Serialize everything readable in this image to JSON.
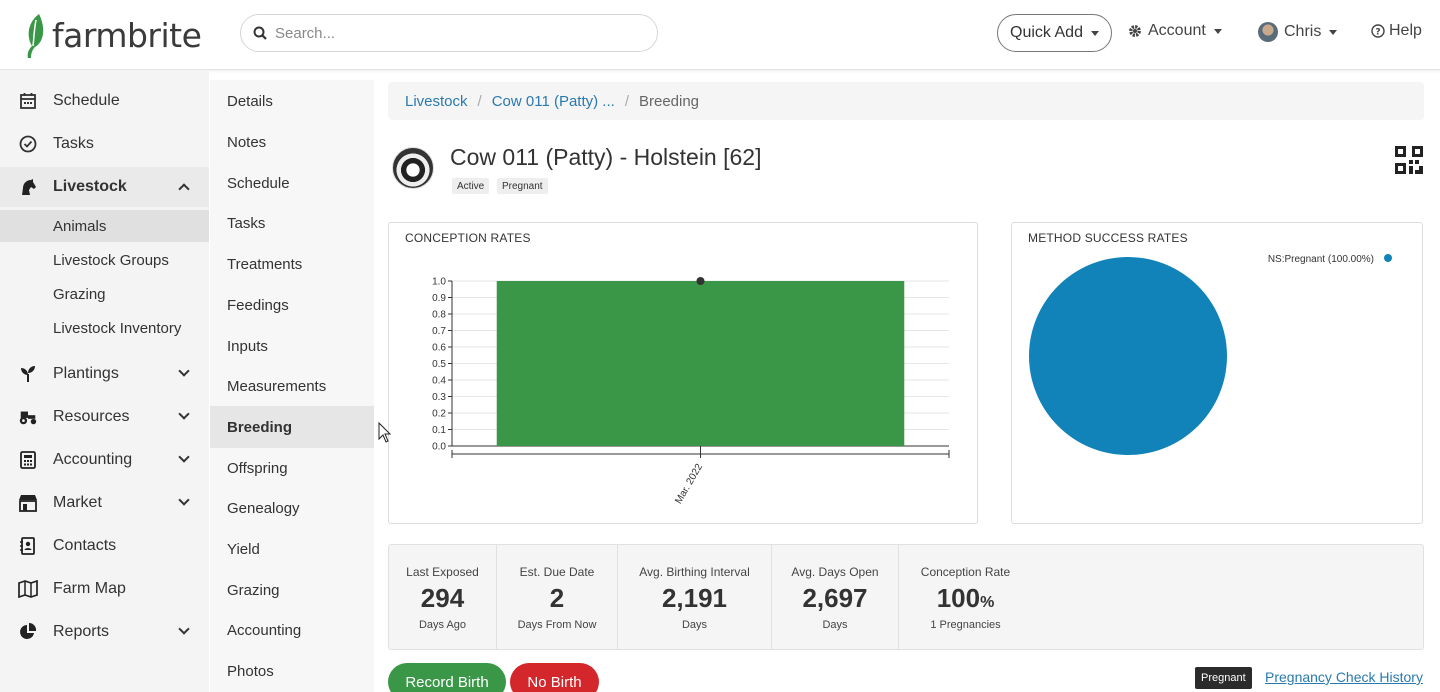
{
  "app": {
    "logo_text": "farmbrite",
    "brand_color": "#3a9748"
  },
  "header": {
    "search_placeholder": "Search...",
    "quick_add": "Quick Add",
    "account": "Account",
    "user": "Chris",
    "help": "Help"
  },
  "sidebar": {
    "items": [
      {
        "label": "Schedule",
        "icon": "calendar-icon"
      },
      {
        "label": "Tasks",
        "icon": "check-circle-icon"
      },
      {
        "label": "Livestock",
        "icon": "horse-icon"
      },
      {
        "label": "Plantings",
        "icon": "seedling-icon"
      },
      {
        "label": "Resources",
        "icon": "tractor-icon"
      },
      {
        "label": "Accounting",
        "icon": "calculator-icon"
      },
      {
        "label": "Market",
        "icon": "store-icon"
      },
      {
        "label": "Contacts",
        "icon": "address-book-icon"
      },
      {
        "label": "Farm Map",
        "icon": "map-icon"
      },
      {
        "label": "Reports",
        "icon": "pie-chart-icon"
      }
    ],
    "livestock_sub": [
      "Animals",
      "Livestock Groups",
      "Grazing",
      "Livestock Inventory"
    ]
  },
  "submenu": [
    "Details",
    "Notes",
    "Schedule",
    "Tasks",
    "Treatments",
    "Feedings",
    "Inputs",
    "Measurements",
    "Breeding",
    "Offspring",
    "Genealogy",
    "Yield",
    "Grazing",
    "Accounting",
    "Photos"
  ],
  "breadcrumb": {
    "root": "Livestock",
    "animal": "Cow 011 (Patty) ...",
    "current": "Breeding"
  },
  "animal": {
    "title": "Cow 011 (Patty) - Holstein [62]",
    "badges": [
      "Active",
      "Pregnant"
    ]
  },
  "conception_panel": {
    "title": "CONCEPTION RATES"
  },
  "method_panel": {
    "title": "METHOD SUCCESS RATES"
  },
  "chart_data": [
    {
      "type": "bar",
      "title": "CONCEPTION RATES",
      "categories": [
        "Mar. 2022"
      ],
      "values": [
        1.0
      ],
      "ylim": [
        0,
        1.0
      ],
      "yticks": [
        "0.0",
        "0.1",
        "0.2",
        "0.3",
        "0.4",
        "0.5",
        "0.6",
        "0.7",
        "0.8",
        "0.9",
        "1.0"
      ],
      "grid": true,
      "bar_color": "#3a9748"
    },
    {
      "type": "pie",
      "title": "METHOD SUCCESS RATES",
      "slices": [
        {
          "label": "NS:Pregnant (100.00%)",
          "value": 100.0
        }
      ],
      "legend": "top-right",
      "color": "#1283b8"
    }
  ],
  "stats": [
    {
      "label": "Last Exposed",
      "value": "294",
      "unit": "",
      "sub": "Days Ago"
    },
    {
      "label": "Est. Due Date",
      "value": "2",
      "unit": "",
      "sub": "Days From Now"
    },
    {
      "label": "Avg. Birthing Interval",
      "value": "2,191",
      "unit": "",
      "sub": "Days"
    },
    {
      "label": "Avg. Days Open",
      "value": "2,697",
      "unit": "",
      "sub": "Days"
    },
    {
      "label": "Conception Rate",
      "value": "100",
      "unit": "%",
      "sub": "1 Pregnancies"
    }
  ],
  "actions": {
    "record_birth": "Record Birth",
    "no_birth": "No Birth",
    "pregnant_tag": "Pregnant",
    "pregnancy_history": "Pregnancy Check History"
  }
}
